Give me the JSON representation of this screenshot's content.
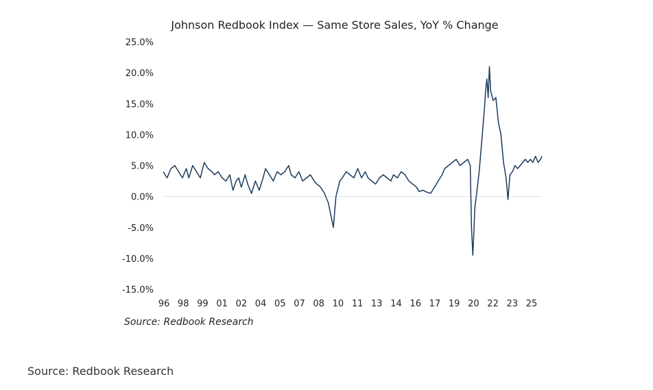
{
  "caption": "Source: Redbook Research",
  "chart_data": {
    "type": "line",
    "title": "Johnson Redbook Index —  Same Store Sales, YoY % Change",
    "source_note": "Source: Redbook Research",
    "xlabel": "",
    "ylabel": "",
    "ylim": [
      -15,
      25
    ],
    "xlim": [
      1996,
      2025.6
    ],
    "grid": false,
    "legend": "none",
    "y_ticks": [
      "25.0%",
      "20.0%",
      "15.0%",
      "10.0%",
      "5.0%",
      "0.0%",
      "-5.0%",
      "-10.0%",
      "-15.0%"
    ],
    "x_ticks": [
      "96",
      "98",
      "99",
      "01",
      "02",
      "04",
      "05",
      "07",
      "08",
      "10",
      "11",
      "13",
      "14",
      "16",
      "17",
      "19",
      "20",
      "22",
      "23",
      "25"
    ],
    "line_color": "#1b3a5c",
    "zero_line_color": "#e0e4ea",
    "series": [
      {
        "x": [
          1996.0,
          1996.3,
          1996.6,
          1996.9,
          1997.2,
          1997.5,
          1997.8,
          1998.0,
          1998.3,
          1998.6,
          1998.9,
          1999.2,
          1999.5,
          1999.8,
          2000.0,
          2000.3,
          2000.6,
          2000.9,
          2001.2,
          2001.45,
          2001.7,
          2001.9,
          2002.1,
          2002.4,
          2002.6,
          2002.9,
          2003.2,
          2003.5,
          2003.8,
          2004.0,
          2004.3,
          2004.6,
          2004.9,
          2005.2,
          2005.5,
          2005.8,
          2006.0,
          2006.3,
          2006.6,
          2006.9,
          2007.2,
          2007.5,
          2007.8,
          2008.0,
          2008.3,
          2008.6,
          2008.9,
          2009.1,
          2009.3,
          2009.5,
          2009.8,
          2010.0,
          2010.3,
          2010.6,
          2010.9,
          2011.2,
          2011.5,
          2011.8,
          2012.0,
          2012.3,
          2012.6,
          2012.9,
          2013.2,
          2013.5,
          2013.8,
          2014.0,
          2014.3,
          2014.6,
          2014.9,
          2015.2,
          2015.5,
          2015.8,
          2016.0,
          2016.3,
          2016.6,
          2016.9,
          2017.2,
          2017.5,
          2017.8,
          2018.0,
          2018.3,
          2018.6,
          2018.9,
          2019.2,
          2019.5,
          2019.8,
          2020.0,
          2020.1,
          2020.2,
          2020.3,
          2020.35,
          2020.5,
          2020.7,
          2020.9,
          2021.1,
          2021.2,
          2021.3,
          2021.4,
          2021.5,
          2021.6,
          2021.8,
          2022.0,
          2022.2,
          2022.4,
          2022.6,
          2022.8,
          2022.95,
          2023.1,
          2023.3,
          2023.5,
          2023.7,
          2023.9,
          2024.1,
          2024.3,
          2024.5,
          2024.7,
          2024.9,
          2025.1,
          2025.3,
          2025.5,
          2025.6
        ],
        "y": [
          4.0,
          3.0,
          4.5,
          5.0,
          4.0,
          3.0,
          4.5,
          3.0,
          5.0,
          4.0,
          3.0,
          5.5,
          4.5,
          4.0,
          3.5,
          4.0,
          3.0,
          2.5,
          3.5,
          1.0,
          2.5,
          3.0,
          1.5,
          3.5,
          2.0,
          0.5,
          2.5,
          1.0,
          3.0,
          4.5,
          3.5,
          2.5,
          4.0,
          3.5,
          4.0,
          5.0,
          3.5,
          3.0,
          4.0,
          2.5,
          3.0,
          3.5,
          2.5,
          2.0,
          1.5,
          0.5,
          -1.0,
          -3.0,
          -5.0,
          0.0,
          2.5,
          3.0,
          4.0,
          3.5,
          3.0,
          4.5,
          3.0,
          4.0,
          3.0,
          2.5,
          2.0,
          3.0,
          3.5,
          3.0,
          2.5,
          3.5,
          3.0,
          4.0,
          3.5,
          2.5,
          2.0,
          1.5,
          0.8,
          1.0,
          0.7,
          0.5,
          1.5,
          2.5,
          3.5,
          4.5,
          5.0,
          5.5,
          6.0,
          5.0,
          5.5,
          6.0,
          5.0,
          -5.0,
          -9.5,
          -5.0,
          -2.0,
          0.5,
          4.0,
          9.0,
          14.0,
          17.0,
          19.0,
          16.0,
          21.0,
          17.0,
          15.5,
          16.0,
          12.0,
          10.0,
          5.5,
          3.0,
          -0.5,
          3.5,
          4.0,
          5.0,
          4.5,
          5.0,
          5.5,
          6.0,
          5.5,
          6.0,
          5.5,
          6.5,
          5.5,
          6.0,
          6.5
        ]
      }
    ]
  }
}
